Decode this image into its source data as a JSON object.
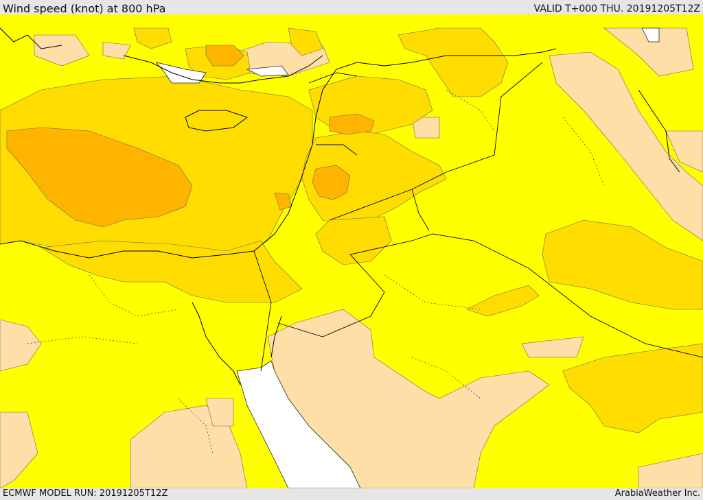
{
  "header": {
    "title": "Wind speed (knot) at 800 hPa",
    "valid": "VALID T+000 THU. 20191205T12Z"
  },
  "footer": {
    "model_run": "ECMWF MODEL RUN: 20191205T12Z",
    "credit": "ArabiaWeather Inc."
  },
  "colors": {
    "band_low": "#ffdfa8",
    "band_mid": "#ffff00",
    "band_high": "#ffdd00",
    "band_higher": "#ffb400",
    "band_max": "#f0a000",
    "water": "#ffffff"
  }
}
